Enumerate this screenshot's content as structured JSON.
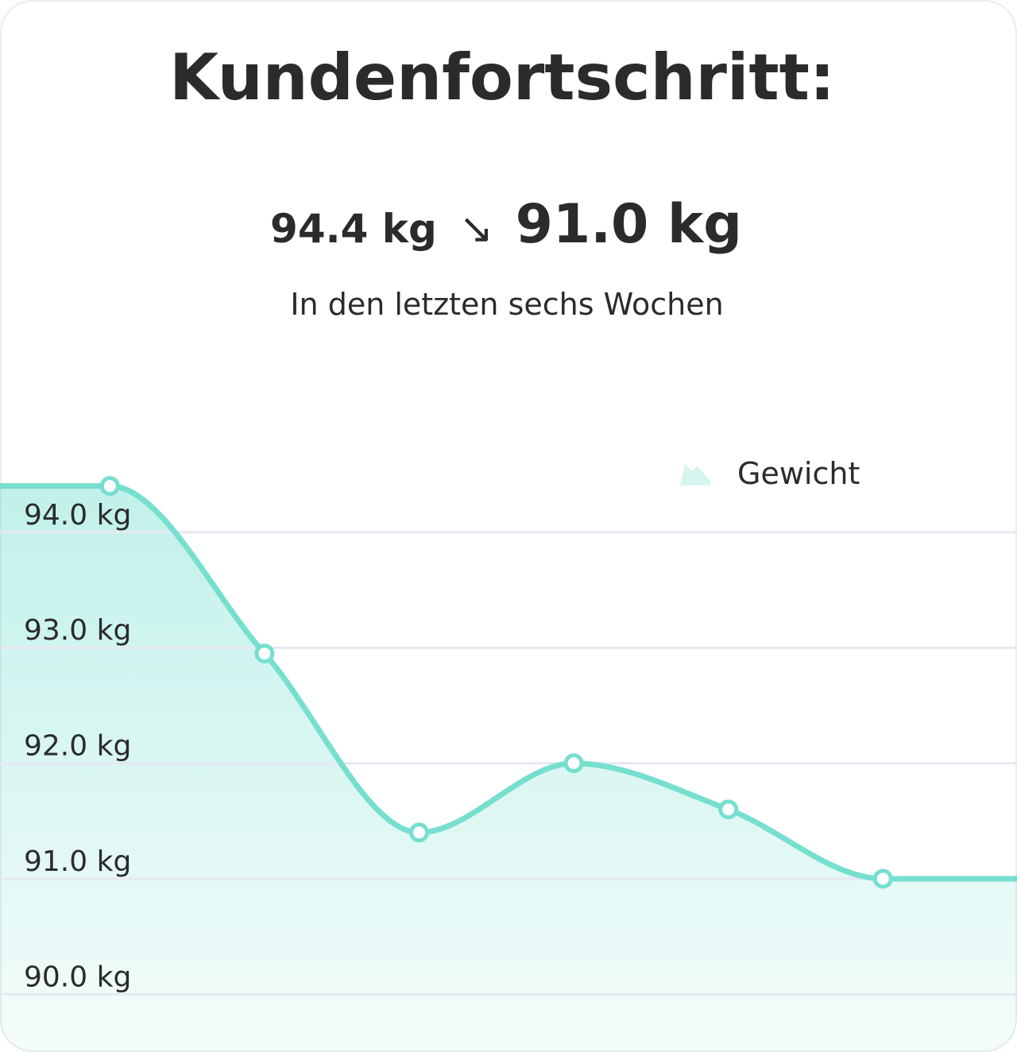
{
  "chart_data": {
    "type": "line",
    "title": "Kundenfortschritt:",
    "headline": {
      "from": "94.4 kg",
      "arrow": "↘",
      "to": "91.0 kg"
    },
    "subtitle": "In den letzten sechs Wochen",
    "categories": [
      null,
      null,
      null,
      null,
      null,
      null
    ],
    "series": [
      {
        "name": "Gewicht",
        "color": "#76dfcf",
        "values": [
          94.4,
          92.95,
          91.4,
          92.0,
          91.6,
          91.0
        ]
      }
    ],
    "ylim": [
      89.5,
      94.9
    ],
    "yticks": [
      {
        "value": 90,
        "label": "90.0 kg"
      },
      {
        "value": 91,
        "label": "91.0 kg"
      },
      {
        "value": 92,
        "label": "92.0 kg"
      },
      {
        "value": 93,
        "label": "93.0 kg"
      },
      {
        "value": 94,
        "label": "94.0 kg"
      }
    ],
    "grid": true,
    "legend": "top-right"
  }
}
